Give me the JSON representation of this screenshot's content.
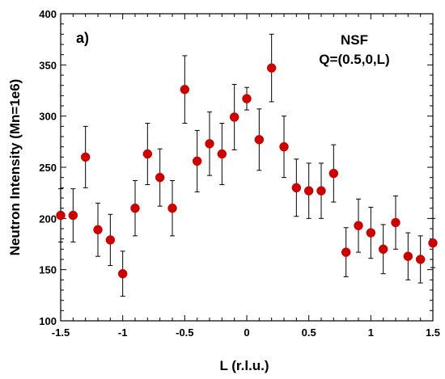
{
  "chart_data": {
    "type": "scatter",
    "xlabel": "L (r.l.u.)",
    "ylabel": "Neutron Intensity  (Mn=1e6)",
    "xlim": [
      -1.5,
      1.5
    ],
    "ylim": [
      100,
      400
    ],
    "xticks": [
      -1.5,
      -1,
      -0.5,
      0,
      0.5,
      1,
      1.5
    ],
    "xtick_labels": [
      "-1.5",
      "-1",
      "-0.5",
      "0",
      "0.5",
      "1",
      "1.5"
    ],
    "yticks": [
      100,
      150,
      200,
      250,
      300,
      350,
      400
    ],
    "ytick_labels": [
      "100",
      "150",
      "200",
      "250",
      "300",
      "350",
      "400"
    ],
    "grid": false,
    "panel_label": "a)",
    "annotations": [
      "NSF",
      "Q=(0.5,0,L)"
    ],
    "marker_color": "#cc0000",
    "errorbar_color": "#000000",
    "series": [
      {
        "x": [
          -1.5,
          -1.4,
          -1.3,
          -1.2,
          -1.1,
          -1.0,
          -0.9,
          -0.8,
          -0.7,
          -0.6,
          -0.5,
          -0.4,
          -0.3,
          -0.2,
          -0.1,
          0.0,
          0.1,
          0.2,
          0.3,
          0.4,
          0.5,
          0.6,
          0.7,
          0.8,
          0.9,
          1.0,
          1.1,
          1.2,
          1.3,
          1.4,
          1.5
        ],
        "y": [
          203,
          203,
          260,
          189,
          179,
          146,
          210,
          263,
          240,
          210,
          326,
          256,
          273,
          263,
          299,
          317,
          277,
          347,
          270,
          230,
          227,
          227,
          244,
          167,
          193,
          186,
          170,
          196,
          163,
          160,
          176
        ],
        "y_err": [
          26,
          26,
          30,
          26,
          25,
          22,
          27,
          30,
          28,
          27,
          33,
          30,
          31,
          30,
          32,
          11,
          30,
          33,
          30,
          28,
          27,
          27,
          28,
          24,
          26,
          25,
          24,
          26,
          23,
          23,
          24
        ]
      }
    ]
  }
}
